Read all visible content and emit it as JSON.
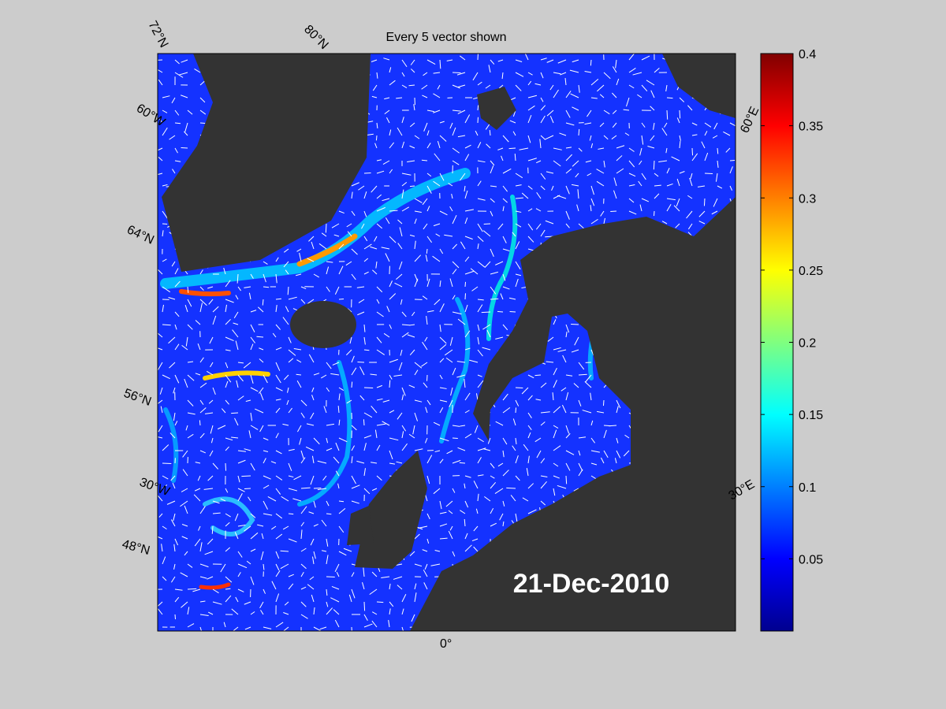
{
  "title": "Every 5 vector shown",
  "map": {
    "lat_labels": [
      "72°N",
      "60°W",
      "64°N",
      "56°N",
      "48°N"
    ],
    "lon_labels": [
      "80°N",
      "30°W",
      "0°",
      "30°E",
      "60°E"
    ],
    "date": "21-Dec-2010"
  },
  "colorbar": {
    "lim": [
      0,
      0.4
    ],
    "ticks": [
      0.05,
      0.1,
      0.15,
      0.2,
      0.25,
      0.3,
      0.35,
      0.4
    ]
  }
}
